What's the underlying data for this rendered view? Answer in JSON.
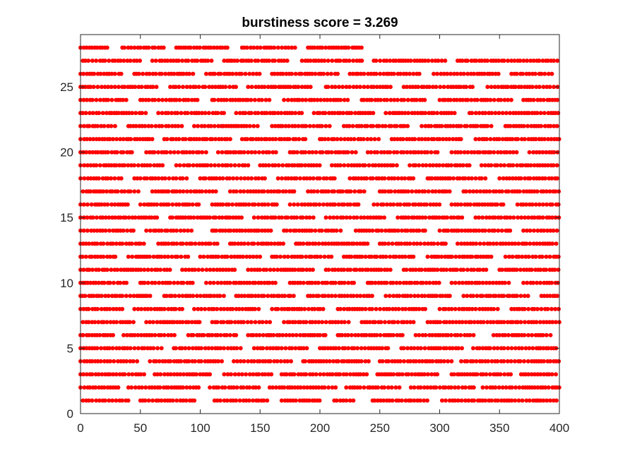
{
  "chart_data": {
    "type": "scatter",
    "title": "burstiness score = 3.269",
    "xlabel": "",
    "ylabel": "",
    "xlim": [
      0,
      400
    ],
    "ylim": [
      0,
      29
    ],
    "xticks": [
      0,
      50,
      100,
      150,
      200,
      250,
      300,
      350,
      400
    ],
    "yticks": [
      0,
      5,
      10,
      15,
      20,
      25
    ],
    "grid": false,
    "marker_color": "#ff0000",
    "rows": [
      {
        "y": 1,
        "segments": [
          [
            2,
            40
          ],
          [
            50,
            96
          ],
          [
            112,
            157
          ],
          [
            168,
            200
          ],
          [
            212,
            228
          ],
          [
            244,
            290
          ],
          [
            302,
            400
          ]
        ]
      },
      {
        "y": 2,
        "segments": [
          [
            0,
            32
          ],
          [
            40,
            100
          ],
          [
            108,
            150
          ],
          [
            158,
            215
          ],
          [
            222,
            268
          ],
          [
            276,
            330
          ],
          [
            336,
            400
          ]
        ]
      },
      {
        "y": 3,
        "segments": [
          [
            0,
            55
          ],
          [
            62,
            110
          ],
          [
            120,
            160
          ],
          [
            168,
            240
          ],
          [
            248,
            300
          ],
          [
            310,
            360
          ],
          [
            368,
            400
          ]
        ]
      },
      {
        "y": 4,
        "segments": [
          [
            0,
            48
          ],
          [
            58,
            120
          ],
          [
            128,
            178
          ],
          [
            186,
            242
          ],
          [
            250,
            310
          ],
          [
            318,
            400
          ]
        ]
      },
      {
        "y": 5,
        "segments": [
          [
            0,
            70
          ],
          [
            78,
            135
          ],
          [
            145,
            190
          ],
          [
            200,
            260
          ],
          [
            268,
            320
          ],
          [
            328,
            400
          ]
        ]
      },
      {
        "y": 6,
        "segments": [
          [
            0,
            28
          ],
          [
            36,
            80
          ],
          [
            90,
            130
          ],
          [
            140,
            205
          ],
          [
            215,
            270
          ],
          [
            280,
            330
          ],
          [
            345,
            395
          ]
        ]
      },
      {
        "y": 7,
        "segments": [
          [
            2,
            45
          ],
          [
            55,
            100
          ],
          [
            110,
            160
          ],
          [
            170,
            225
          ],
          [
            235,
            280
          ],
          [
            290,
            400
          ]
        ]
      },
      {
        "y": 8,
        "segments": [
          [
            0,
            35
          ],
          [
            45,
            85
          ],
          [
            95,
            150
          ],
          [
            160,
            205
          ],
          [
            215,
            290
          ],
          [
            300,
            350
          ],
          [
            360,
            400
          ]
        ]
      },
      {
        "y": 9,
        "segments": [
          [
            0,
            60
          ],
          [
            70,
            120
          ],
          [
            130,
            180
          ],
          [
            190,
            245
          ],
          [
            255,
            310
          ],
          [
            320,
            375
          ],
          [
            385,
            400
          ]
        ]
      },
      {
        "y": 10,
        "segments": [
          [
            0,
            40
          ],
          [
            50,
            95
          ],
          [
            105,
            165
          ],
          [
            175,
            230
          ],
          [
            240,
            300
          ],
          [
            310,
            360
          ],
          [
            370,
            400
          ]
        ]
      },
      {
        "y": 11,
        "segments": [
          [
            0,
            75
          ],
          [
            85,
            130
          ],
          [
            140,
            195
          ],
          [
            205,
            260
          ],
          [
            270,
            340
          ],
          [
            350,
            400
          ]
        ]
      },
      {
        "y": 12,
        "segments": [
          [
            0,
            30
          ],
          [
            40,
            90
          ],
          [
            100,
            150
          ],
          [
            160,
            210
          ],
          [
            220,
            280
          ],
          [
            290,
            345
          ],
          [
            355,
            400
          ]
        ]
      },
      {
        "y": 13,
        "segments": [
          [
            0,
            55
          ],
          [
            65,
            115
          ],
          [
            125,
            170
          ],
          [
            180,
            240
          ],
          [
            250,
            305
          ],
          [
            315,
            400
          ]
        ]
      },
      {
        "y": 14,
        "segments": [
          [
            0,
            45
          ],
          [
            55,
            95
          ],
          [
            110,
            160
          ],
          [
            170,
            220
          ],
          [
            230,
            290
          ],
          [
            300,
            360
          ],
          [
            370,
            400
          ]
        ]
      },
      {
        "y": 15,
        "segments": [
          [
            0,
            65
          ],
          [
            75,
            135
          ],
          [
            145,
            195
          ],
          [
            205,
            255
          ],
          [
            265,
            320
          ],
          [
            330,
            400
          ]
        ]
      },
      {
        "y": 16,
        "segments": [
          [
            0,
            40
          ],
          [
            50,
            100
          ],
          [
            110,
            165
          ],
          [
            175,
            235
          ],
          [
            245,
            300
          ],
          [
            310,
            355
          ],
          [
            365,
            400
          ]
        ]
      },
      {
        "y": 17,
        "segments": [
          [
            2,
            50
          ],
          [
            60,
            115
          ],
          [
            125,
            180
          ],
          [
            190,
            240
          ],
          [
            250,
            310
          ],
          [
            320,
            400
          ]
        ]
      },
      {
        "y": 18,
        "segments": [
          [
            0,
            35
          ],
          [
            45,
            90
          ],
          [
            100,
            155
          ],
          [
            165,
            215
          ],
          [
            225,
            280
          ],
          [
            290,
            340
          ],
          [
            350,
            400
          ]
        ]
      },
      {
        "y": 19,
        "segments": [
          [
            0,
            70
          ],
          [
            80,
            140
          ],
          [
            150,
            200
          ],
          [
            210,
            265
          ],
          [
            275,
            325
          ],
          [
            335,
            400
          ]
        ]
      },
      {
        "y": 20,
        "segments": [
          [
            0,
            45
          ],
          [
            55,
            105
          ],
          [
            115,
            165
          ],
          [
            175,
            230
          ],
          [
            240,
            300
          ],
          [
            310,
            365
          ],
          [
            375,
            400
          ]
        ]
      },
      {
        "y": 21,
        "segments": [
          [
            0,
            60
          ],
          [
            70,
            125
          ],
          [
            135,
            190
          ],
          [
            200,
            250
          ],
          [
            260,
            320
          ],
          [
            330,
            400
          ]
        ]
      },
      {
        "y": 22,
        "segments": [
          [
            0,
            30
          ],
          [
            40,
            85
          ],
          [
            95,
            150
          ],
          [
            160,
            210
          ],
          [
            220,
            275
          ],
          [
            285,
            345
          ],
          [
            355,
            400
          ]
        ]
      },
      {
        "y": 23,
        "segments": [
          [
            0,
            55
          ],
          [
            65,
            120
          ],
          [
            130,
            185
          ],
          [
            195,
            245
          ],
          [
            255,
            315
          ],
          [
            325,
            400
          ]
        ]
      },
      {
        "y": 24,
        "segments": [
          [
            0,
            40
          ],
          [
            50,
            100
          ],
          [
            110,
            160
          ],
          [
            170,
            225
          ],
          [
            235,
            290
          ],
          [
            300,
            360
          ],
          [
            370,
            400
          ]
        ]
      },
      {
        "y": 25,
        "segments": [
          [
            0,
            65
          ],
          [
            75,
            130
          ],
          [
            140,
            195
          ],
          [
            205,
            260
          ],
          [
            270,
            330
          ],
          [
            340,
            400
          ]
        ]
      },
      {
        "y": 26,
        "segments": [
          [
            0,
            35
          ],
          [
            45,
            95
          ],
          [
            105,
            150
          ],
          [
            160,
            215
          ],
          [
            225,
            285
          ],
          [
            295,
            350
          ],
          [
            360,
            395
          ]
        ]
      },
      {
        "y": 27,
        "segments": [
          [
            2,
            50
          ],
          [
            60,
            110
          ],
          [
            120,
            175
          ],
          [
            185,
            235
          ],
          [
            245,
            305
          ],
          [
            315,
            400
          ]
        ]
      },
      {
        "y": 28,
        "segments": [
          [
            0,
            25
          ],
          [
            35,
            70
          ],
          [
            80,
            125
          ],
          [
            135,
            180
          ],
          [
            190,
            236
          ]
        ]
      }
    ]
  }
}
